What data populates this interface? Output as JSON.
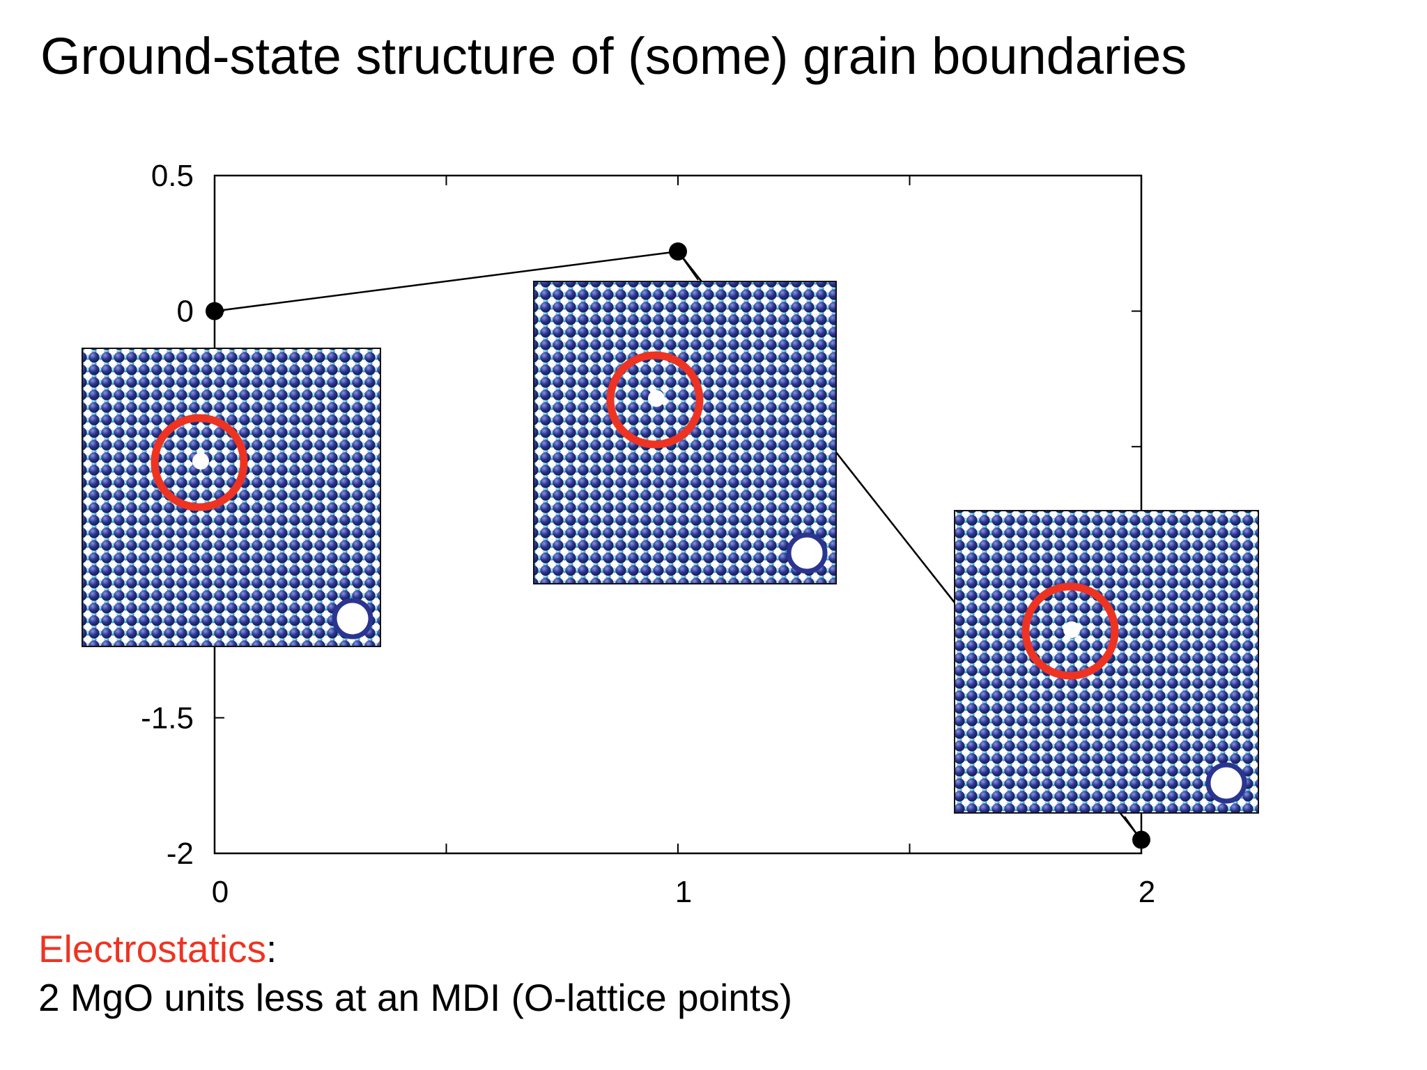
{
  "title": "Ground-state structure of (some) grain boundaries",
  "chart_data": {
    "type": "scatter",
    "title": "Ground-state structure of (some) grain boundaries",
    "xlabel": "",
    "ylabel": "",
    "xlim": [
      0,
      2
    ],
    "ylim": [
      -2,
      0.5
    ],
    "x_ticks": [
      "0",
      "1",
      "2"
    ],
    "y_ticks": [
      "0.5",
      "0",
      "-1.5",
      "-2"
    ],
    "grid": false,
    "connected": true,
    "points": [
      {
        "x": 0,
        "y": 0
      },
      {
        "x": 1,
        "y": 0.22
      },
      {
        "x": 2,
        "y": -1.95
      }
    ],
    "insets": [
      {
        "depicts": "MgO grain boundary atomic structure",
        "highlight": "red circle"
      },
      {
        "depicts": "MgO grain boundary atomic structure",
        "highlight": "red circle"
      },
      {
        "depicts": "MgO grain boundary atomic structure",
        "highlight": "red circle"
      }
    ],
    "colors": {
      "marker": "#000000",
      "highlight": "#ee3322",
      "atom_large": "#2b3590",
      "atom_small": "#58c6dc"
    }
  },
  "note": {
    "highlight": "Electrostatics",
    "colon": ":",
    "text": "2 MgO units less at an MDI (O-lattice points)"
  }
}
